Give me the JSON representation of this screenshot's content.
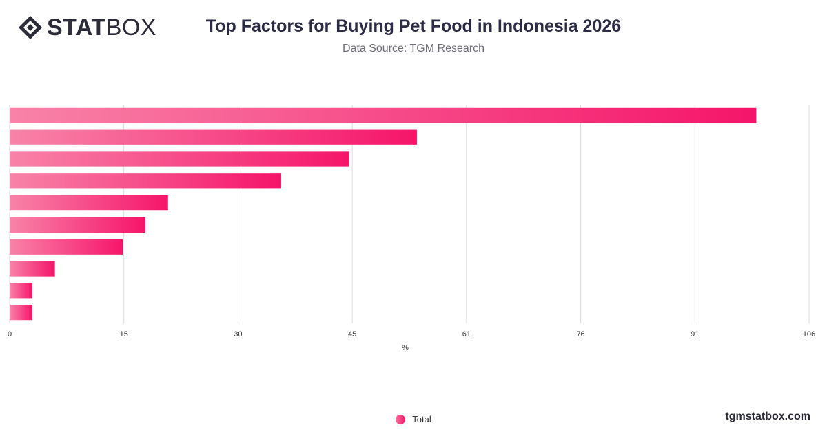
{
  "brand": {
    "logo_strong": "STAT",
    "logo_light": "BOX",
    "logo_icon": "diamond-logo-icon"
  },
  "title": "Top Factors for Buying Pet Food in Indonesia 2026",
  "subtitle": "Data Source: TGM Research",
  "footer": "tgmstatbox.com",
  "legend": {
    "label": "Total"
  },
  "chart_data": {
    "type": "bar",
    "orientation": "horizontal",
    "title": "Top Factors for Buying Pet Food in Indonesia 2026",
    "xlabel": "%",
    "x_ticks": [
      "0",
      "15",
      "30",
      "45",
      "61",
      "76",
      "91",
      "106"
    ],
    "xlim": [
      0,
      106
    ],
    "grid": true,
    "legend_position": "bottom",
    "series": [
      {
        "name": "Total",
        "values": [
          99,
          54,
          45,
          36,
          21,
          18,
          15,
          6,
          3,
          3
        ]
      }
    ],
    "colors": {
      "bar_start": "#f883a8",
      "bar_end": "#f5156a",
      "grid": "#dddddd"
    }
  }
}
